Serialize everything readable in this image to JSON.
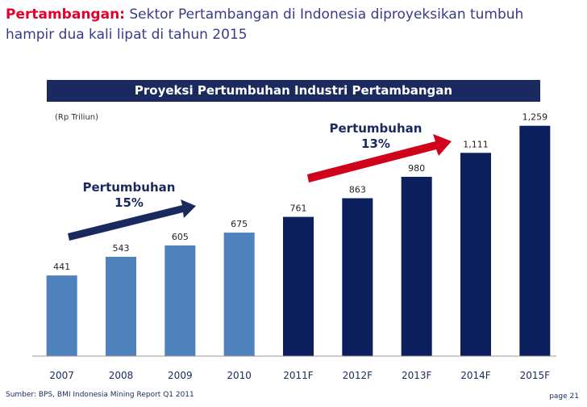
{
  "header": {
    "keyword": "Pertambangan:",
    "line1": "Sektor Pertambangan di Indonesia diproyeksikan tumbuh",
    "line2": "hampir dua kali lipat di tahun 2015"
  },
  "chart_title": "Proyeksi Pertumbuhan Industri Pertambangan",
  "unit_label": "(Rp Triliun)",
  "growth_left": {
    "line1": "Pertumbuhan",
    "line2": "15%"
  },
  "growth_right": {
    "line1": "Pertumbuhan",
    "line2": "13%"
  },
  "colors": {
    "actual": "#4f81bd",
    "forecast": "#0b1f5c",
    "arrow_left": "#1a2a5e",
    "arrow_right": "#d0021b"
  },
  "chart_data": {
    "type": "bar",
    "categories": [
      "2007",
      "2008",
      "2009",
      "2010",
      "2011F",
      "2012F",
      "2013F",
      "2014F",
      "2015F"
    ],
    "values": [
      441,
      543,
      605,
      675,
      761,
      863,
      980,
      1111,
      1259
    ],
    "value_labels": [
      "441",
      "543",
      "605",
      "675",
      "761",
      "863",
      "980",
      "1,111",
      "1,259"
    ],
    "forecast_flags": [
      false,
      false,
      false,
      false,
      true,
      true,
      true,
      true,
      true
    ],
    "ylim": [
      0,
      1430
    ]
  },
  "footer": {
    "source": "Sumber: BPS, BMI Indonesia Mining Report Q1 2011",
    "page": "page 21"
  }
}
